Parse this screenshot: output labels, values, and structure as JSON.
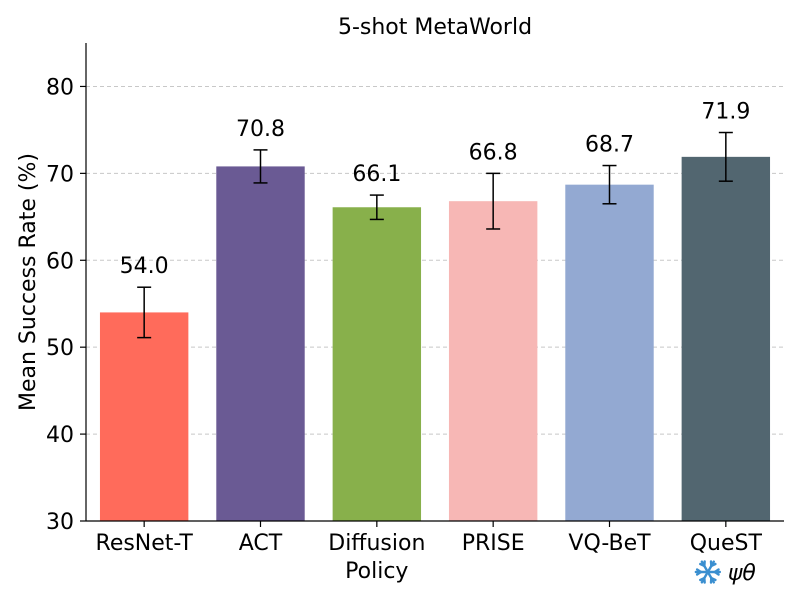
{
  "chart_data": {
    "type": "bar",
    "title": "5-shot MetaWorld",
    "xlabel": "",
    "ylabel": "Mean Success Rate (%)",
    "ylim": [
      30,
      85
    ],
    "yticks": [
      30,
      40,
      50,
      60,
      70,
      80
    ],
    "grid": "horizontal-dashed",
    "categories": [
      [
        "ResNet-T"
      ],
      [
        "ACT"
      ],
      [
        "Diffusion",
        "Policy"
      ],
      [
        "PRISE"
      ],
      [
        "VQ-BeT"
      ],
      [
        "QueST"
      ]
    ],
    "values": [
      54.0,
      70.8,
      66.1,
      66.8,
      68.7,
      71.9
    ],
    "value_labels": [
      "54.0",
      "70.8",
      "66.1",
      "66.8",
      "68.7",
      "71.9"
    ],
    "error_low": [
      51.1,
      68.9,
      64.7,
      63.6,
      66.5,
      69.1
    ],
    "error_high": [
      56.9,
      72.7,
      67.5,
      70.0,
      70.9,
      74.7
    ],
    "colors": [
      "#ff6b5b",
      "#6a5a94",
      "#88b04b",
      "#f7b7b5",
      "#93a9d2",
      "#526670"
    ],
    "annotation": {
      "category_index": 5,
      "icon": "snowflake-icon",
      "icon_color": "#3b8fd0",
      "text": "ψθ"
    }
  }
}
